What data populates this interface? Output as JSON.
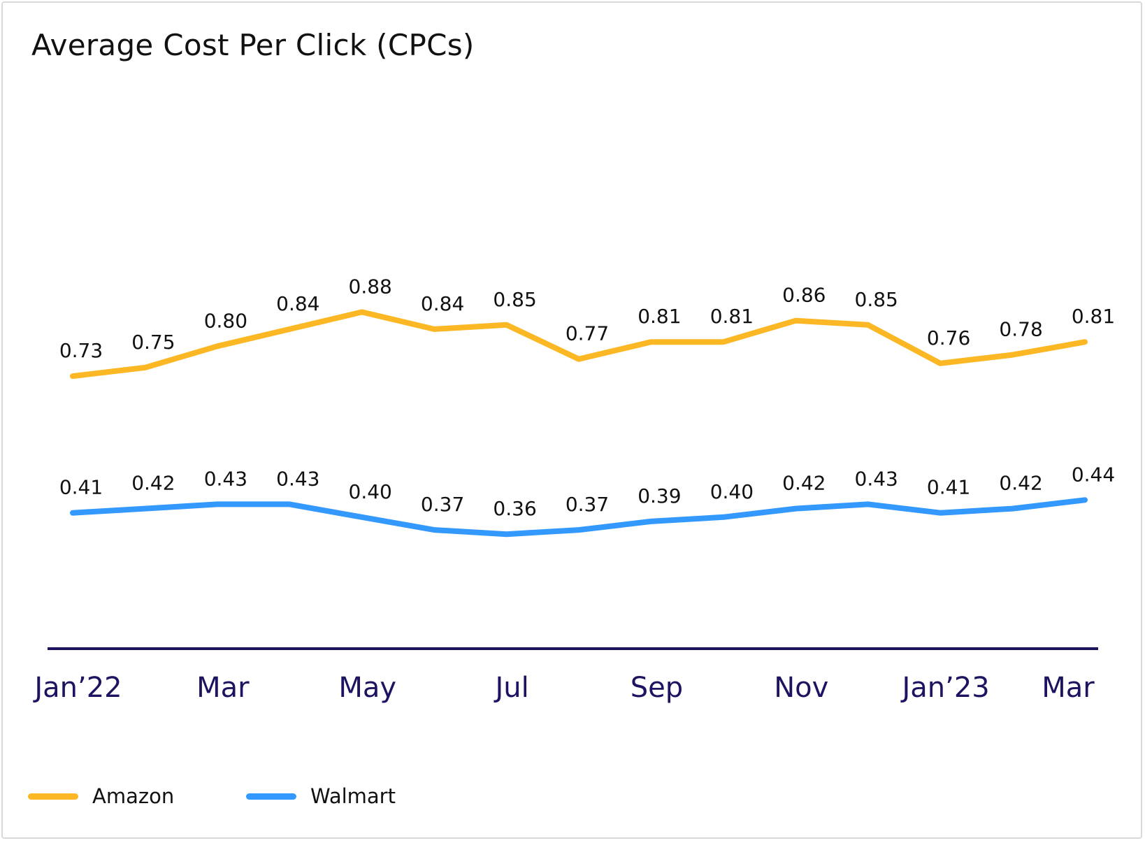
{
  "title": "Average Cost Per Click (CPCs)",
  "colors": {
    "axis": "#1c1460",
    "label": "#111111"
  },
  "chart_data": {
    "type": "line",
    "title": "Average Cost Per Click (CPCs)",
    "x": [
      "Jan 2022",
      "Feb 2022",
      "Mar 2022",
      "Apr 2022",
      "May 2022",
      "Jun 2022",
      "Jul 2022",
      "Aug 2022",
      "Sep 2022",
      "Oct 2022",
      "Nov 2022",
      "Dec 2022",
      "Jan 2023",
      "Feb 2023",
      "Mar 2023"
    ],
    "x_tick_labels": [
      "Jan’22",
      "",
      "Mar",
      "",
      "May",
      "",
      "Jul",
      "",
      "Sep",
      "",
      "Nov",
      "",
      "Jan’23",
      "",
      "Mar"
    ],
    "ylim": [
      0.2,
      1.1
    ],
    "grid": false,
    "legend_position": "bottom-left",
    "series": [
      {
        "name": "Amazon",
        "color": "#fbb824",
        "values": [
          0.73,
          0.75,
          0.8,
          0.84,
          0.88,
          0.84,
          0.85,
          0.77,
          0.81,
          0.81,
          0.86,
          0.85,
          0.76,
          0.78,
          0.81
        ],
        "labels": [
          "0.73",
          "0.75",
          "0.80",
          "0.84",
          "0.88",
          "0.84",
          "0.85",
          "0.77",
          "0.81",
          "0.81",
          "0.86",
          "0.85",
          "0.76",
          "0.78",
          "0.81"
        ]
      },
      {
        "name": "Walmart",
        "color": "#3399ff",
        "values": [
          0.41,
          0.42,
          0.43,
          0.43,
          0.4,
          0.37,
          0.36,
          0.37,
          0.39,
          0.4,
          0.42,
          0.43,
          0.41,
          0.42,
          0.44
        ],
        "labels": [
          "0.41",
          "0.42",
          "0.43",
          "0.43",
          "0.40",
          "0.37",
          "0.36",
          "0.37",
          "0.39",
          "0.40",
          "0.42",
          "0.43",
          "0.41",
          "0.42",
          "0.44"
        ]
      }
    ]
  }
}
